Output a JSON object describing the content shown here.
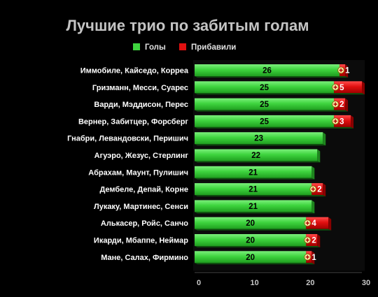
{
  "chart_data": {
    "type": "bar",
    "orientation": "horizontal",
    "stacked": true,
    "title": "Лучшие трио по забитым голам",
    "legend_position": "top-center",
    "categories": [
      "Иммобиле, Кайседо, Корреа",
      "Гризманн, Месси, Суарес",
      "Варди, Мэддисон, Перес",
      "Вернер, Забитцер, Форсберг",
      "Гнабри, Левандовски, Перишич",
      "Агуэро, Жезус, Стерлинг",
      "Абрахам, Маунт, Пулишич",
      "Дембеле, Депай, Корне",
      "Лукаку, Мартинес, Сенси",
      "Алькасер, Ройс, Санчо",
      "Икарди, Мбаппе, Неймар",
      "Мане, Салах, Фирмино"
    ],
    "series": [
      {
        "name": "Голы",
        "color": "#3ed43e",
        "values": [
          26,
          25,
          25,
          25,
          23,
          22,
          21,
          21,
          21,
          20,
          20,
          20
        ],
        "labels": [
          "26",
          "25",
          "25",
          "25",
          "23",
          "22",
          "21",
          "21",
          "21",
          "20",
          "20",
          "20"
        ]
      },
      {
        "name": "Прибавили",
        "color": "#e01010",
        "values": [
          1,
          5,
          2,
          3,
          0,
          0,
          0,
          2,
          0,
          4,
          2,
          1
        ],
        "labels": [
          "+1",
          "+ 5",
          "+2",
          "+ 3",
          "",
          "",
          "",
          "+2",
          "",
          "+ 4",
          "+2",
          "+1"
        ]
      }
    ],
    "xlim": [
      0,
      30
    ],
    "xticks": [
      "0",
      "10",
      "20",
      "30"
    ],
    "grid": false
  }
}
